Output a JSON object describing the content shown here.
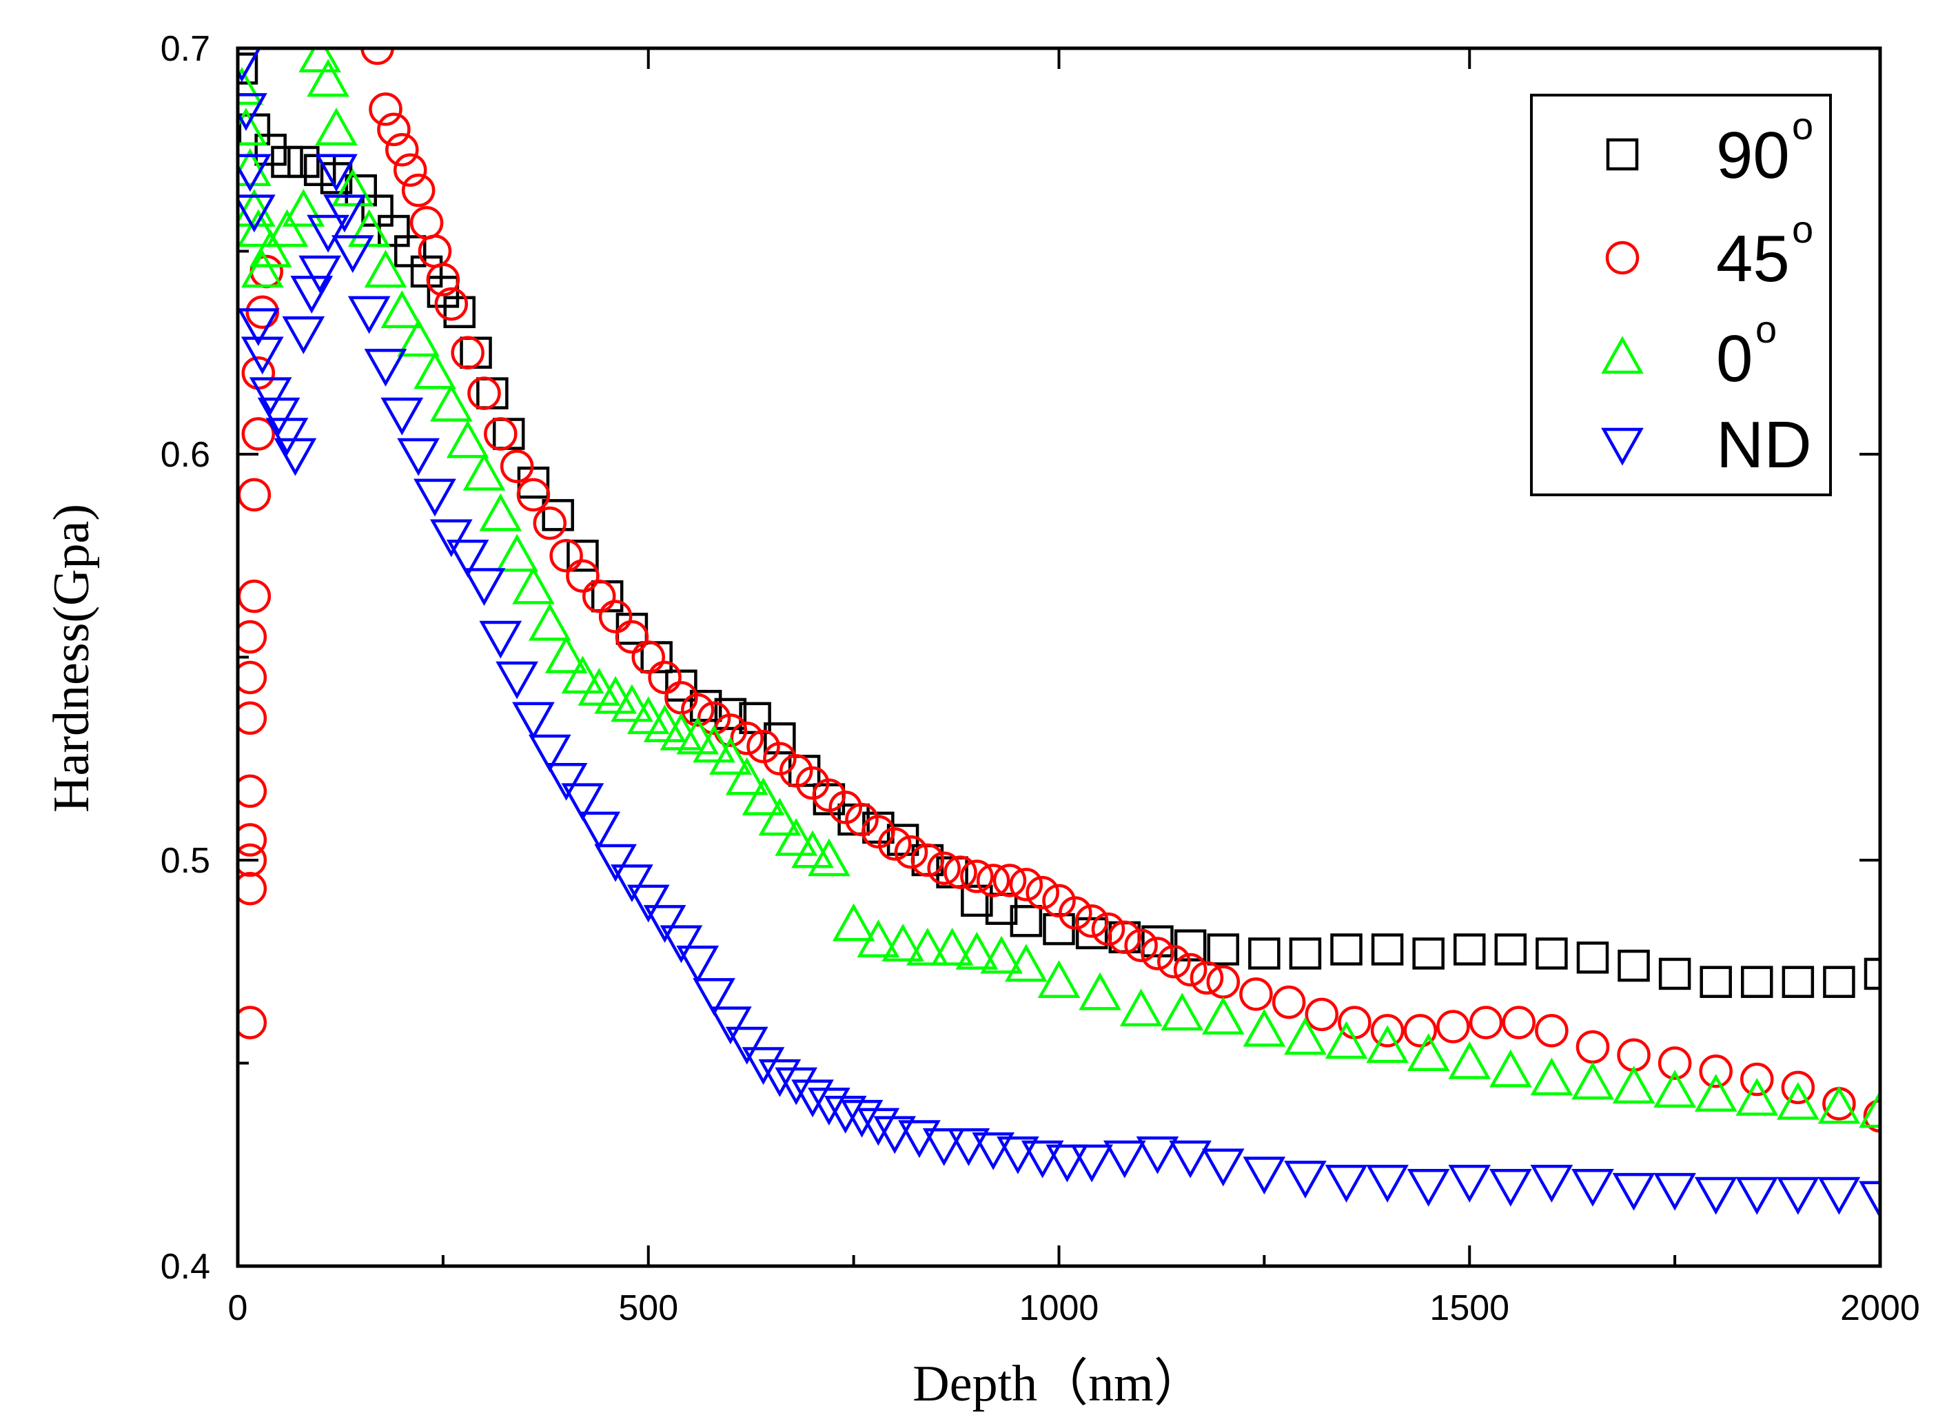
{
  "chart_data": {
    "type": "scatter",
    "title": "",
    "xlabel": "Depth（nm）",
    "ylabel": "Hardness(Gpa)",
    "xlim": [
      0,
      2000
    ],
    "ylim": [
      0.4,
      0.7
    ],
    "xticks": [
      0,
      500,
      1000,
      1500,
      2000
    ],
    "yticks": [
      0.4,
      0.5,
      0.6,
      0.7
    ],
    "xtick_labels": [
      "0",
      "500",
      "1000",
      "1500",
      "2000"
    ],
    "ytick_labels": [
      "0.4",
      "0.5",
      "0.6",
      "0.7"
    ],
    "legend_position": "top-right",
    "series": [
      {
        "name": "90°",
        "label_base": "90",
        "label_sup": "o",
        "marker": "square",
        "color": "#000000",
        "x": [
          5,
          20,
          40,
          60,
          80,
          100,
          120,
          150,
          170,
          190,
          210,
          230,
          250,
          270,
          290,
          310,
          330,
          360,
          390,
          420,
          450,
          480,
          510,
          540,
          570,
          600,
          630,
          660,
          690,
          720,
          750,
          780,
          810,
          840,
          870,
          900,
          930,
          960,
          1000,
          1040,
          1080,
          1120,
          1160,
          1200,
          1250,
          1300,
          1350,
          1400,
          1450,
          1500,
          1550,
          1600,
          1650,
          1700,
          1750,
          1800,
          1850,
          1900,
          1950,
          2000
        ],
        "y": [
          0.695,
          0.68,
          0.675,
          0.672,
          0.672,
          0.67,
          0.668,
          0.665,
          0.66,
          0.655,
          0.65,
          0.645,
          0.64,
          0.635,
          0.625,
          0.615,
          0.605,
          0.593,
          0.585,
          0.575,
          0.565,
          0.557,
          0.55,
          0.543,
          0.538,
          0.536,
          0.535,
          0.53,
          0.522,
          0.515,
          0.51,
          0.508,
          0.505,
          0.5,
          0.497,
          0.49,
          0.488,
          0.485,
          0.483,
          0.482,
          0.481,
          0.48,
          0.479,
          0.478,
          0.477,
          0.477,
          0.478,
          0.478,
          0.477,
          0.478,
          0.478,
          0.477,
          0.476,
          0.474,
          0.472,
          0.47,
          0.47,
          0.47,
          0.47,
          0.472
        ]
      },
      {
        "name": "45°",
        "label_base": "45",
        "label_sup": "o",
        "marker": "circle",
        "color": "#ff0000",
        "x": [
          15,
          15,
          15,
          15,
          15,
          15,
          15,
          15,
          20,
          20,
          25,
          25,
          30,
          35,
          170,
          180,
          190,
          200,
          210,
          220,
          230,
          240,
          250,
          260,
          280,
          300,
          320,
          340,
          360,
          380,
          400,
          420,
          440,
          460,
          480,
          500,
          520,
          540,
          560,
          580,
          600,
          620,
          640,
          660,
          680,
          700,
          720,
          740,
          760,
          780,
          800,
          820,
          840,
          860,
          880,
          900,
          920,
          940,
          960,
          980,
          1000,
          1020,
          1040,
          1060,
          1080,
          1100,
          1120,
          1140,
          1160,
          1180,
          1200,
          1240,
          1280,
          1320,
          1360,
          1400,
          1440,
          1480,
          1520,
          1560,
          1600,
          1650,
          1700,
          1750,
          1800,
          1850,
          1900,
          1950,
          2000
        ],
        "y": [
          0.46,
          0.493,
          0.5,
          0.505,
          0.517,
          0.535,
          0.545,
          0.555,
          0.565,
          0.59,
          0.605,
          0.62,
          0.635,
          0.645,
          0.7,
          0.685,
          0.68,
          0.675,
          0.67,
          0.665,
          0.657,
          0.65,
          0.643,
          0.637,
          0.625,
          0.615,
          0.605,
          0.597,
          0.59,
          0.583,
          0.575,
          0.57,
          0.565,
          0.56,
          0.555,
          0.55,
          0.545,
          0.54,
          0.537,
          0.535,
          0.532,
          0.53,
          0.528,
          0.525,
          0.522,
          0.519,
          0.516,
          0.513,
          0.51,
          0.507,
          0.504,
          0.502,
          0.5,
          0.498,
          0.497,
          0.496,
          0.495,
          0.495,
          0.494,
          0.492,
          0.49,
          0.487,
          0.485,
          0.483,
          0.481,
          0.479,
          0.477,
          0.475,
          0.473,
          0.471,
          0.47,
          0.467,
          0.465,
          0.462,
          0.46,
          0.458,
          0.458,
          0.459,
          0.46,
          0.46,
          0.458,
          0.454,
          0.452,
          0.45,
          0.448,
          0.446,
          0.444,
          0.44,
          0.437
        ]
      },
      {
        "name": "0°",
        "label_base": "0",
        "label_sup": "o",
        "marker": "triangle-up",
        "color": "#00ff00",
        "x": [
          5,
          10,
          15,
          20,
          25,
          30,
          40,
          60,
          80,
          100,
          110,
          120,
          140,
          160,
          180,
          200,
          220,
          240,
          260,
          280,
          300,
          320,
          340,
          360,
          380,
          400,
          420,
          440,
          460,
          480,
          500,
          520,
          540,
          560,
          580,
          600,
          620,
          640,
          660,
          680,
          700,
          720,
          750,
          780,
          810,
          840,
          870,
          900,
          930,
          960,
          1000,
          1050,
          1100,
          1150,
          1200,
          1250,
          1300,
          1350,
          1400,
          1450,
          1500,
          1550,
          1600,
          1650,
          1700,
          1750,
          1800,
          1850,
          1900,
          1950,
          2000
        ],
        "y": [
          0.69,
          0.68,
          0.67,
          0.66,
          0.655,
          0.645,
          0.65,
          0.655,
          0.66,
          0.698,
          0.692,
          0.68,
          0.665,
          0.655,
          0.645,
          0.635,
          0.628,
          0.62,
          0.612,
          0.603,
          0.595,
          0.585,
          0.575,
          0.567,
          0.558,
          0.55,
          0.545,
          0.542,
          0.54,
          0.538,
          0.535,
          0.533,
          0.531,
          0.53,
          0.528,
          0.525,
          0.52,
          0.515,
          0.51,
          0.505,
          0.502,
          0.5,
          0.484,
          0.48,
          0.479,
          0.478,
          0.478,
          0.477,
          0.476,
          0.474,
          0.47,
          0.467,
          0.463,
          0.462,
          0.461,
          0.458,
          0.456,
          0.455,
          0.454,
          0.452,
          0.45,
          0.448,
          0.446,
          0.445,
          0.444,
          0.443,
          0.442,
          0.441,
          0.44,
          0.439,
          0.438
        ]
      },
      {
        "name": "ND",
        "label_base": "ND",
        "label_sup": "",
        "marker": "triangle-down",
        "color": "#0000ff",
        "x": [
          5,
          10,
          15,
          20,
          25,
          30,
          40,
          50,
          60,
          70,
          80,
          90,
          100,
          110,
          120,
          130,
          140,
          160,
          180,
          200,
          220,
          240,
          260,
          280,
          300,
          320,
          340,
          360,
          380,
          400,
          420,
          440,
          460,
          480,
          500,
          520,
          540,
          560,
          580,
          600,
          620,
          640,
          660,
          680,
          700,
          720,
          740,
          760,
          780,
          800,
          830,
          860,
          890,
          920,
          950,
          980,
          1010,
          1040,
          1080,
          1120,
          1160,
          1200,
          1250,
          1300,
          1350,
          1400,
          1450,
          1500,
          1550,
          1600,
          1650,
          1700,
          1750,
          1800,
          1850,
          1900,
          1950,
          2000
        ],
        "y": [
          0.697,
          0.685,
          0.67,
          0.66,
          0.632,
          0.625,
          0.615,
          0.61,
          0.605,
          0.6,
          0.63,
          0.64,
          0.645,
          0.655,
          0.67,
          0.66,
          0.65,
          0.635,
          0.622,
          0.61,
          0.6,
          0.59,
          0.58,
          0.575,
          0.568,
          0.555,
          0.545,
          0.535,
          0.527,
          0.52,
          0.515,
          0.508,
          0.5,
          0.495,
          0.49,
          0.485,
          0.48,
          0.475,
          0.467,
          0.46,
          0.455,
          0.45,
          0.447,
          0.445,
          0.442,
          0.44,
          0.438,
          0.437,
          0.435,
          0.433,
          0.432,
          0.43,
          0.43,
          0.429,
          0.428,
          0.427,
          0.426,
          0.426,
          0.427,
          0.428,
          0.427,
          0.425,
          0.423,
          0.422,
          0.421,
          0.421,
          0.42,
          0.421,
          0.42,
          0.421,
          0.42,
          0.419,
          0.419,
          0.418,
          0.418,
          0.418,
          0.418,
          0.417
        ]
      }
    ]
  }
}
